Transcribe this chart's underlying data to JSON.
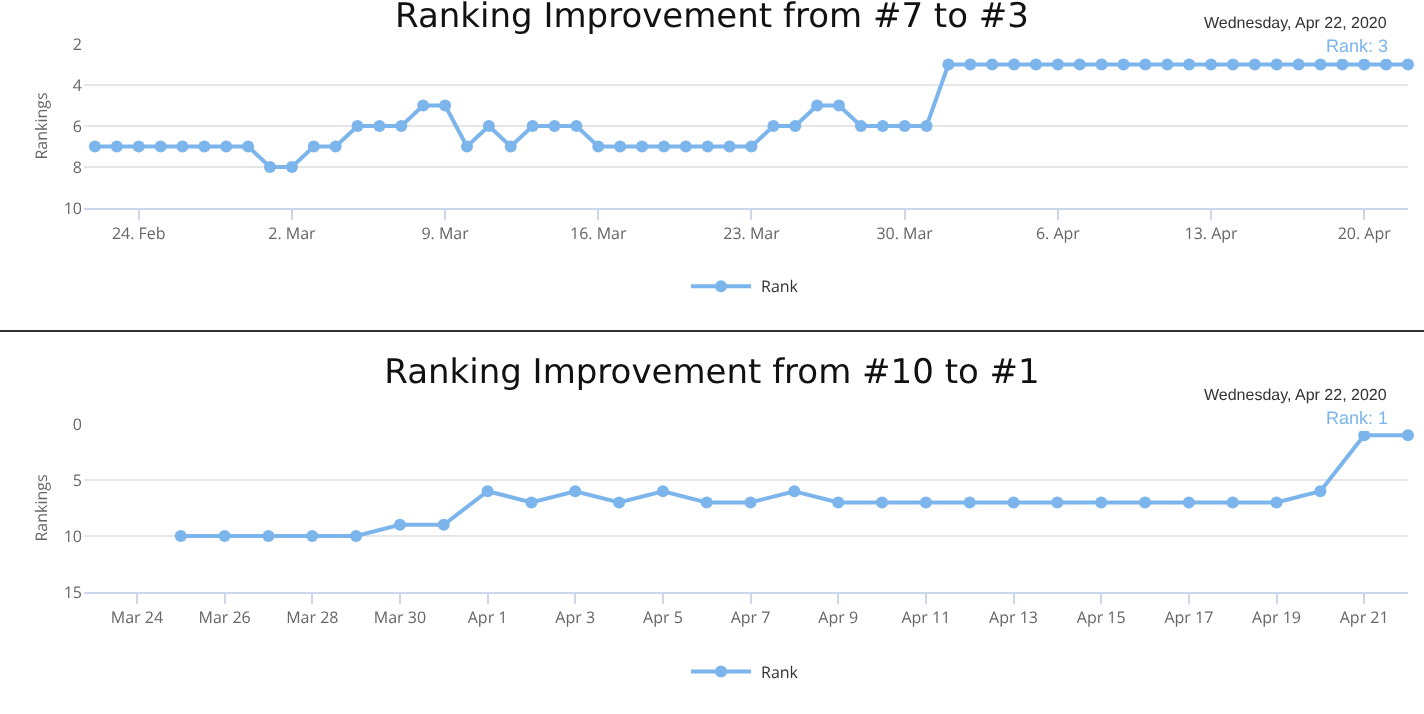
{
  "chart_data": [
    {
      "type": "line",
      "title": "Ranking Improvement from #7 to #3",
      "ylabel": "Rankings",
      "x": [
        "2020-02-22",
        "2020-02-23",
        "2020-02-24",
        "2020-02-25",
        "2020-02-26",
        "2020-02-27",
        "2020-02-28",
        "2020-02-29",
        "2020-03-01",
        "2020-03-02",
        "2020-03-03",
        "2020-03-04",
        "2020-03-05",
        "2020-03-06",
        "2020-03-07",
        "2020-03-08",
        "2020-03-09",
        "2020-03-10",
        "2020-03-11",
        "2020-03-12",
        "2020-03-13",
        "2020-03-14",
        "2020-03-15",
        "2020-03-16",
        "2020-03-17",
        "2020-03-18",
        "2020-03-19",
        "2020-03-20",
        "2020-03-21",
        "2020-03-22",
        "2020-03-23",
        "2020-03-24",
        "2020-03-25",
        "2020-03-26",
        "2020-03-27",
        "2020-03-28",
        "2020-03-29",
        "2020-03-30",
        "2020-03-31",
        "2020-04-01",
        "2020-04-02",
        "2020-04-03",
        "2020-04-04",
        "2020-04-05",
        "2020-04-06",
        "2020-04-07",
        "2020-04-08",
        "2020-04-09",
        "2020-04-10",
        "2020-04-11",
        "2020-04-12",
        "2020-04-13",
        "2020-04-14",
        "2020-04-15",
        "2020-04-16",
        "2020-04-17",
        "2020-04-18",
        "2020-04-19",
        "2020-04-20",
        "2020-04-21",
        "2020-04-22"
      ],
      "series": [
        {
          "name": "Rank",
          "color": "#7cb5ec",
          "values": [
            7,
            7,
            7,
            7,
            7,
            7,
            7,
            7,
            8,
            8,
            7,
            7,
            6,
            6,
            6,
            5,
            5,
            7,
            6,
            7,
            6,
            6,
            6,
            7,
            7,
            7,
            7,
            7,
            7,
            7,
            7,
            6,
            6,
            5,
            5,
            6,
            6,
            6,
            6,
            3,
            3,
            3,
            3,
            3,
            3,
            3,
            3,
            3,
            3,
            3,
            3,
            3,
            3,
            3,
            3,
            3,
            3,
            3,
            3,
            3,
            3
          ]
        }
      ],
      "xlim": [
        "2020-02-21T12:00",
        "2020-04-22"
      ],
      "ylim": [
        10,
        2
      ],
      "yticks": [
        2,
        4,
        6,
        8,
        10
      ],
      "xticks": [
        {
          "value": "2020-02-24",
          "label": "24. Feb"
        },
        {
          "value": "2020-03-02",
          "label": "2. Mar"
        },
        {
          "value": "2020-03-09",
          "label": "9. Mar"
        },
        {
          "value": "2020-03-16",
          "label": "16. Mar"
        },
        {
          "value": "2020-03-23",
          "label": "23. Mar"
        },
        {
          "value": "2020-03-30",
          "label": "30. Mar"
        },
        {
          "value": "2020-04-06",
          "label": "6. Apr"
        },
        {
          "value": "2020-04-13",
          "label": "13. Apr"
        },
        {
          "value": "2020-04-20",
          "label": "20. Apr"
        }
      ],
      "annotations": [
        {
          "text": "Wednesday, Apr 22, 2020",
          "x": "2020-04-22",
          "y": 3
        },
        {
          "text": "Rank: 3",
          "x": "2020-04-22",
          "y": 3
        }
      ],
      "grid": "y",
      "legend": "bottom",
      "marker": "circle",
      "line_style": "solid"
    },
    {
      "type": "line",
      "title": "Ranking Improvement from #10 to #1",
      "ylabel": "Rankings",
      "x": [
        "2020-03-25",
        "2020-03-26",
        "2020-03-27",
        "2020-03-28",
        "2020-03-29",
        "2020-03-30",
        "2020-03-31",
        "2020-04-01",
        "2020-04-02",
        "2020-04-03",
        "2020-04-04",
        "2020-04-05",
        "2020-04-06",
        "2020-04-07",
        "2020-04-08",
        "2020-04-09",
        "2020-04-10",
        "2020-04-11",
        "2020-04-12",
        "2020-04-13",
        "2020-04-14",
        "2020-04-15",
        "2020-04-16",
        "2020-04-17",
        "2020-04-18",
        "2020-04-19",
        "2020-04-20",
        "2020-04-21",
        "2020-04-22"
      ],
      "series": [
        {
          "name": "Rank",
          "color": "#7cb5ec",
          "values": [
            10,
            10,
            10,
            10,
            10,
            9,
            9,
            6,
            7,
            6,
            7,
            6,
            7,
            7,
            6,
            7,
            7,
            7,
            7,
            7,
            7,
            7,
            7,
            7,
            7,
            7,
            6,
            1,
            1
          ]
        }
      ],
      "xlim": [
        "2020-03-22T19:00",
        "2020-04-22"
      ],
      "ylim": [
        15,
        0
      ],
      "yticks": [
        0,
        5,
        10,
        15
      ],
      "xticks": [
        {
          "value": "2020-03-24",
          "label": "Mar 24"
        },
        {
          "value": "2020-03-26",
          "label": "Mar 26"
        },
        {
          "value": "2020-03-28",
          "label": "Mar 28"
        },
        {
          "value": "2020-03-30",
          "label": "Mar 30"
        },
        {
          "value": "2020-04-01",
          "label": "Apr 1"
        },
        {
          "value": "2020-04-03",
          "label": "Apr 3"
        },
        {
          "value": "2020-04-05",
          "label": "Apr 5"
        },
        {
          "value": "2020-04-07",
          "label": "Apr 7"
        },
        {
          "value": "2020-04-09",
          "label": "Apr 9"
        },
        {
          "value": "2020-04-11",
          "label": "Apr 11"
        },
        {
          "value": "2020-04-13",
          "label": "Apr 13"
        },
        {
          "value": "2020-04-15",
          "label": "Apr 15"
        },
        {
          "value": "2020-04-17",
          "label": "Apr 17"
        },
        {
          "value": "2020-04-19",
          "label": "Apr 19"
        },
        {
          "value": "2020-04-21",
          "label": "Apr 21"
        }
      ],
      "annotations": [
        {
          "text": "Wednesday, Apr 22, 2020",
          "x": "2020-04-22",
          "y": 1
        },
        {
          "text": "Rank: 1",
          "x": "2020-04-22",
          "y": 1
        }
      ],
      "grid": "y",
      "legend": "bottom",
      "marker": "circle",
      "line_style": "solid"
    }
  ]
}
